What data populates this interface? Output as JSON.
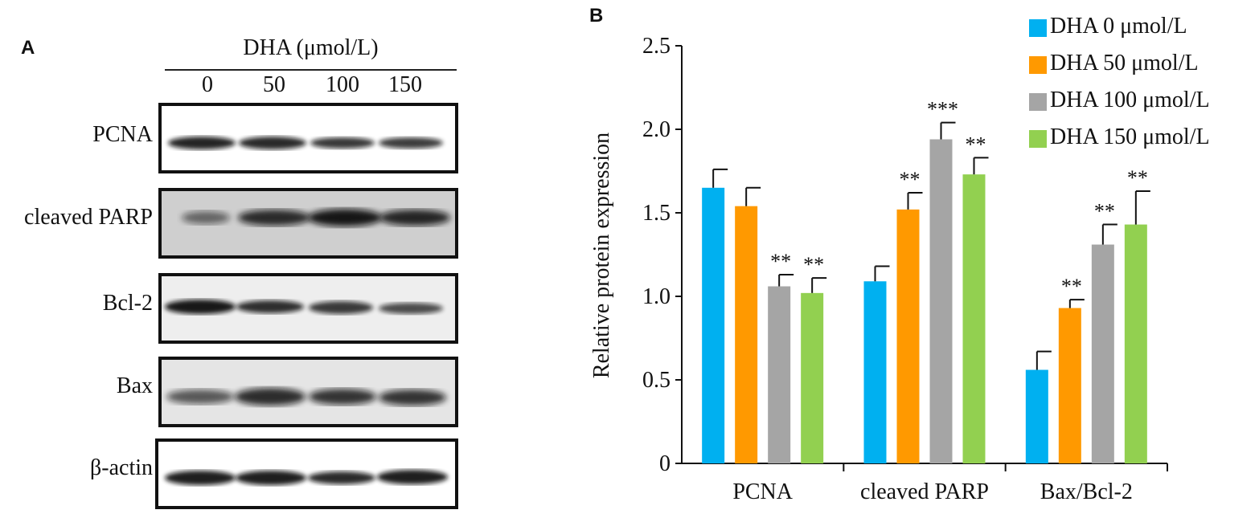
{
  "panel_a": {
    "letter": "A",
    "treatment_header": "DHA (μmol/L)",
    "lanes": [
      "0",
      "50",
      "100",
      "150"
    ],
    "blots": [
      {
        "label": "PCNA",
        "intensities": [
          0.9,
          0.88,
          0.82,
          0.8
        ]
      },
      {
        "label": "cleaved PARP",
        "intensities": [
          0.45,
          0.8,
          0.95,
          0.85
        ]
      },
      {
        "label": "Bcl-2",
        "intensities": [
          0.95,
          0.85,
          0.8,
          0.72
        ]
      },
      {
        "label": "Bax",
        "intensities": [
          0.7,
          0.85,
          0.85,
          0.85
        ]
      },
      {
        "label": "β-actin",
        "intensities": [
          0.92,
          0.92,
          0.88,
          0.92
        ]
      }
    ]
  },
  "panel_b": {
    "letter": "B"
  },
  "chart_data": {
    "type": "bar",
    "title": "",
    "xlabel": "",
    "ylabel": "Relative protein expression",
    "ylim": [
      0,
      2.5
    ],
    "yticks": [
      "0",
      "0.5",
      "1.0",
      "1.5",
      "2.0",
      "2.5"
    ],
    "categories": [
      "PCNA",
      "cleaved PARP",
      "Bax/Bcl-2"
    ],
    "grid": false,
    "legend_position": "top-right",
    "series": [
      {
        "name": "DHA 0 μmol/L",
        "color": "#00b0f0",
        "values": [
          1.65,
          1.09,
          0.56
        ],
        "errors": [
          0.11,
          0.09,
          0.11
        ],
        "significance": [
          "",
          "",
          ""
        ]
      },
      {
        "name": "DHA 50 μmol/L",
        "color": "#ff9900",
        "values": [
          1.54,
          1.52,
          0.93
        ],
        "errors": [
          0.11,
          0.1,
          0.05
        ],
        "significance": [
          "",
          "**",
          "**"
        ]
      },
      {
        "name": "DHA 100 μmol/L",
        "color": "#a5a5a5",
        "values": [
          1.06,
          1.94,
          1.31
        ],
        "errors": [
          0.07,
          0.1,
          0.12
        ],
        "significance": [
          "**",
          "***",
          "**"
        ]
      },
      {
        "name": "DHA 150 μmol/L",
        "color": "#92d050",
        "values": [
          1.02,
          1.73,
          1.43
        ],
        "errors": [
          0.09,
          0.1,
          0.2
        ],
        "significance": [
          "**",
          "**",
          "**"
        ]
      }
    ]
  }
}
